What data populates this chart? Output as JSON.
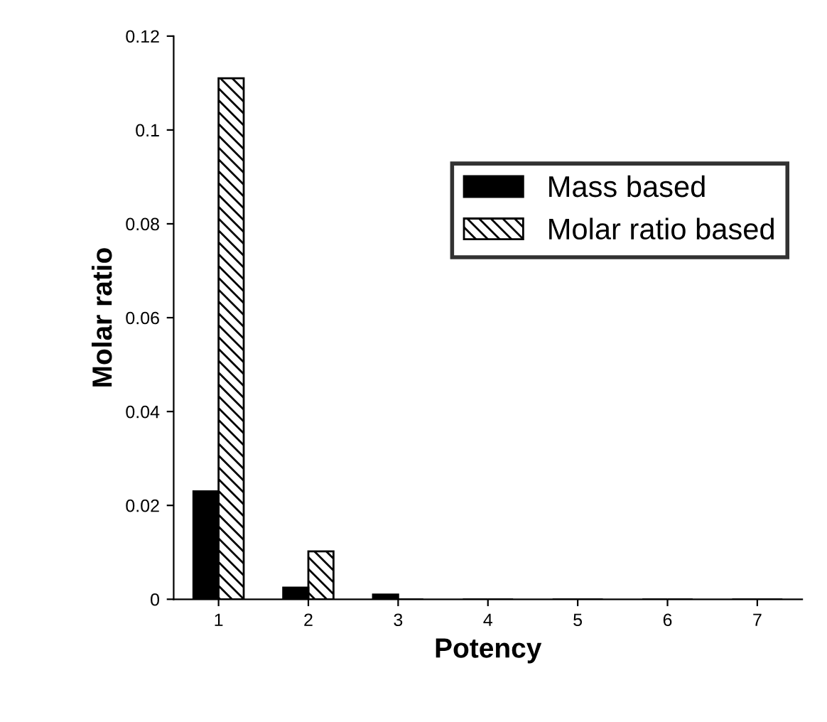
{
  "chart_data": {
    "type": "bar",
    "xlabel": "Potency",
    "ylabel": "Molar ratio",
    "categories": [
      "1",
      "2",
      "3",
      "4",
      "5",
      "6",
      "7"
    ],
    "series": [
      {
        "name": "Mass based",
        "color": "#000000",
        "values": [
          0.023,
          0.0025,
          0.001,
          0,
          0,
          0,
          0
        ]
      },
      {
        "name": "Molar ratio based",
        "color": "#000000",
        "values": [
          0.111,
          0.0102,
          0,
          0,
          0,
          0,
          0
        ]
      }
    ],
    "ylim": [
      0,
      0.12
    ],
    "yticks": [
      0,
      0.02,
      0.04,
      0.06,
      0.08,
      0.1,
      0.12
    ],
    "grid": false,
    "legend": "top right"
  }
}
